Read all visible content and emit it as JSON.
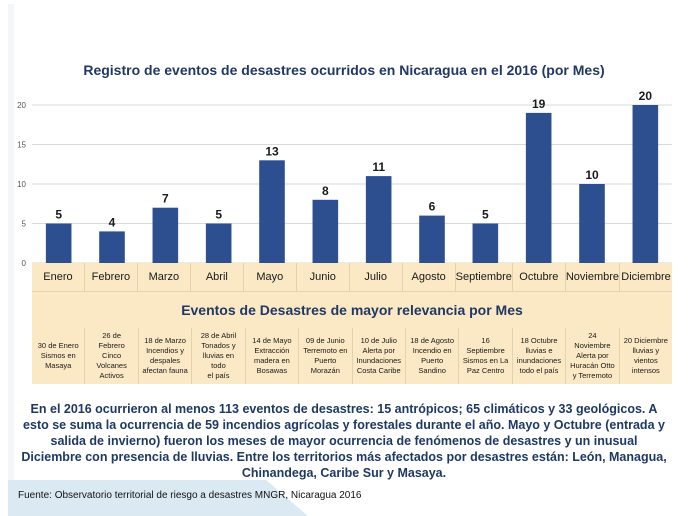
{
  "header": {
    "title": "Registro de eventos de desastres ocurridos en Nicaragua en el 2016 (por Mes)"
  },
  "chart_data": {
    "type": "bar",
    "title": "Registro de eventos de desastres ocurridos en Nicaragua en el 2016 (por Mes)",
    "categories": [
      "Enero",
      "Febrero",
      "Marzo",
      "Abril",
      "Mayo",
      "Junio",
      "Julio",
      "Agosto",
      "Septiembre",
      "Octubre",
      "Noviembre",
      "Diciembre"
    ],
    "values": [
      5,
      4,
      7,
      5,
      13,
      8,
      11,
      6,
      5,
      19,
      10,
      20
    ],
    "ylim": [
      0,
      20
    ],
    "yticks": [
      0,
      5,
      10,
      15,
      20
    ],
    "xlabel": "",
    "ylabel": "",
    "grid": true,
    "bar_color": "#2e4f8f",
    "data_labels": true
  },
  "table": {
    "section_title": "Eventos de Desastres de mayor relevancia por Mes",
    "events": [
      "30 de Enero\nSismos en\nMasaya",
      "26 de Febrero\nCinco\nVolcanes\nActivos",
      "18 de Marzo\nIncendios y\ndespales\nafectan fauna",
      "28 de Abril\nTonados y\nlluvias en todo\nel país",
      "14 de Mayo\nExtracción\nmadera en\nBosawas",
      "09 de Junio\nTerremoto en\nPuerto\nMorazán",
      "10 de Julio\nAlerta por\nInundaciones\nCosta Caribe",
      "18 de Agosto\nIncendio en\nPuerto\nSandino",
      "16 Septiembre\nSismos en La\nPaz Centro",
      "18 Octubre\nlluvias e\ninundaciones\ntodo el país",
      "24 Noviembre\nAlerta por\nHuracán Otto\ny Terremoto",
      "20 Diciembre\nlluvias y\nvientos\nintensos"
    ]
  },
  "summary": {
    "text": "En el 2016 ocurrieron al menos 113 eventos de desastres: 15 antrópicos; 65 climáticos y 33 geológicos. A esto se suma la ocurrencia de 59 incendios agrícolas y forestales durante el año. Mayo y Octubre (entrada y salida de invierno) fueron los meses de mayor ocurrencia de fenómenos de desastres y un inusual Diciembre con presencia de lluvias. Entre los territorios más afectados por desastres están: León, Managua, Chinandega, Caribe Sur y Masaya."
  },
  "footer": {
    "source": "Fuente: Observatorio territorial de riesgo a desastres MNGR, Nicaragua 2016"
  }
}
